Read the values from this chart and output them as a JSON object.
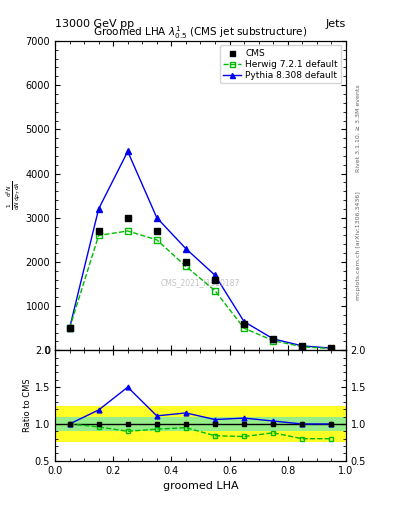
{
  "title": "Groomed LHA $\\lambda^{1}_{0.5}$ (CMS jet substructure)",
  "top_left_label": "13000 GeV pp",
  "top_right_label": "Jets",
  "right_label_top": "Rivet 3.1.10, ≥ 3.3M events",
  "right_label_bottom": "mcplots.cern.ch [arXiv:1306.3436]",
  "watermark": "CMS_2021_I1920187",
  "xlabel": "groomed LHA",
  "ylabel": "$\\frac{1}{\\mathrm{d}N} \\frac{\\mathrm{d}^2N}{\\mathrm{d}p_T\\, \\mathrm{d}\\lambda}$",
  "ratio_ylabel": "Ratio to CMS",
  "x_data": [
    0.05,
    0.15,
    0.25,
    0.35,
    0.45,
    0.55,
    0.65,
    0.75,
    0.85,
    0.95
  ],
  "x_edges": [
    0.0,
    0.1,
    0.2,
    0.3,
    0.4,
    0.5,
    0.6,
    0.7,
    0.8,
    0.9,
    1.0
  ],
  "cms_y": [
    500,
    2700,
    3000,
    2700,
    2000,
    1600,
    600,
    250,
    100,
    50
  ],
  "herwig_y": [
    500,
    2600,
    2700,
    2500,
    1900,
    1350,
    500,
    220,
    80,
    40
  ],
  "pythia_y": [
    500,
    3200,
    4500,
    3000,
    2300,
    1700,
    650,
    260,
    100,
    50
  ],
  "herwig_ratio": [
    1.0,
    0.96,
    0.9,
    0.93,
    0.95,
    0.84,
    0.83,
    0.88,
    0.8,
    0.8
  ],
  "pythia_ratio": [
    1.0,
    1.19,
    1.5,
    1.11,
    1.15,
    1.06,
    1.08,
    1.04,
    1.0,
    1.0
  ],
  "cms_color": "#000000",
  "herwig_color": "#00bb00",
  "pythia_color": "#0000ee",
  "ratio_green_lo": 0.9,
  "ratio_green_hi": 1.1,
  "ratio_yellow_lo": 0.75,
  "ratio_yellow_hi": 1.25,
  "ylim": [
    0,
    7000
  ],
  "xlim": [
    0,
    1.0
  ],
  "ratio_ylim": [
    0.5,
    2.0
  ],
  "yticks": [
    0,
    1000,
    2000,
    3000,
    4000,
    5000,
    6000,
    7000
  ],
  "ratio_yticks": [
    0.5,
    1.0,
    1.5,
    2.0
  ]
}
